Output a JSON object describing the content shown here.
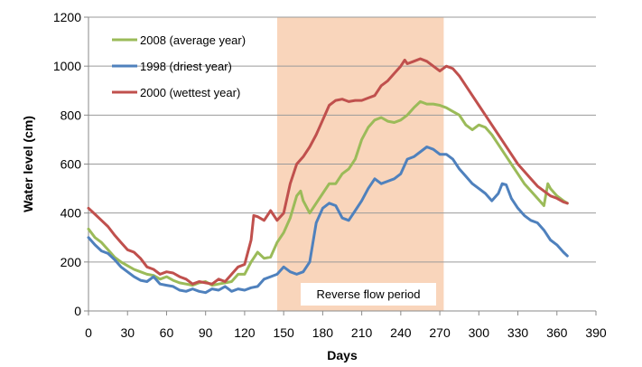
{
  "chart_data": {
    "type": "line",
    "title": "",
    "xlabel": "Days",
    "ylabel": "Water level (cm)",
    "xlim": [
      0,
      390
    ],
    "ylim": [
      0,
      1200
    ],
    "xticks": [
      0,
      30,
      60,
      90,
      120,
      150,
      180,
      210,
      240,
      270,
      300,
      330,
      360,
      390
    ],
    "yticks": [
      0,
      200,
      400,
      600,
      800,
      1000,
      1200
    ],
    "grid": "horizontal",
    "legend_position": "top-left",
    "shaded_region": {
      "x_start": 145,
      "x_end": 273,
      "color": "#f9d5bb",
      "label": "Reverse flow period"
    },
    "series": [
      {
        "name": "2008 (average year)",
        "color": "#9bbb59",
        "x": [
          0,
          5,
          10,
          15,
          20,
          25,
          30,
          35,
          40,
          45,
          50,
          55,
          60,
          65,
          70,
          75,
          80,
          85,
          90,
          95,
          100,
          105,
          110,
          115,
          120,
          125,
          130,
          135,
          140,
          145,
          150,
          155,
          160,
          163,
          165,
          170,
          175,
          180,
          185,
          190,
          195,
          200,
          205,
          210,
          215,
          220,
          225,
          230,
          235,
          240,
          245,
          250,
          255,
          260,
          265,
          270,
          275,
          280,
          285,
          290,
          295,
          300,
          305,
          310,
          315,
          320,
          325,
          330,
          335,
          340,
          345,
          350,
          353,
          355,
          360,
          365,
          368
        ],
        "values": [
          335,
          300,
          280,
          250,
          220,
          200,
          185,
          170,
          160,
          150,
          145,
          130,
          140,
          125,
          115,
          110,
          105,
          115,
          120,
          105,
          110,
          115,
          120,
          150,
          150,
          200,
          240,
          215,
          220,
          280,
          320,
          380,
          470,
          490,
          450,
          400,
          440,
          480,
          520,
          520,
          560,
          580,
          620,
          700,
          750,
          780,
          790,
          775,
          770,
          780,
          800,
          830,
          855,
          845,
          845,
          840,
          830,
          815,
          800,
          760,
          740,
          760,
          750,
          720,
          680,
          640,
          600,
          560,
          520,
          490,
          460,
          430,
          520,
          500,
          470,
          450,
          440
        ]
      },
      {
        "name": "1998 (driest year)",
        "color": "#4f81bd",
        "x": [
          0,
          5,
          10,
          15,
          20,
          25,
          30,
          35,
          40,
          45,
          50,
          55,
          60,
          65,
          70,
          75,
          80,
          85,
          90,
          95,
          100,
          105,
          110,
          115,
          120,
          125,
          130,
          135,
          140,
          145,
          150,
          155,
          160,
          165,
          170,
          175,
          180,
          185,
          190,
          195,
          200,
          205,
          210,
          215,
          220,
          225,
          230,
          235,
          240,
          245,
          250,
          255,
          260,
          265,
          270,
          275,
          280,
          285,
          290,
          295,
          300,
          305,
          310,
          315,
          318,
          321,
          325,
          330,
          335,
          340,
          345,
          350,
          355,
          360,
          365,
          368
        ],
        "values": [
          300,
          270,
          245,
          235,
          210,
          180,
          160,
          140,
          125,
          120,
          140,
          110,
          105,
          100,
          85,
          80,
          90,
          80,
          75,
          90,
          85,
          100,
          80,
          90,
          85,
          95,
          100,
          130,
          140,
          150,
          180,
          160,
          150,
          160,
          200,
          360,
          420,
          440,
          430,
          380,
          370,
          410,
          450,
          500,
          540,
          520,
          530,
          540,
          560,
          620,
          630,
          650,
          670,
          660,
          640,
          640,
          620,
          580,
          550,
          520,
          500,
          480,
          450,
          480,
          520,
          515,
          460,
          420,
          390,
          370,
          360,
          330,
          290,
          270,
          240,
          225
        ]
      },
      {
        "name": "2000 (wettest year)",
        "color": "#c0504d",
        "x": [
          0,
          5,
          10,
          15,
          20,
          25,
          30,
          35,
          40,
          45,
          50,
          55,
          60,
          65,
          70,
          75,
          80,
          85,
          90,
          95,
          100,
          105,
          110,
          115,
          120,
          125,
          127,
          130,
          135,
          140,
          145,
          150,
          155,
          160,
          165,
          170,
          175,
          180,
          185,
          190,
          195,
          200,
          205,
          210,
          215,
          220,
          225,
          230,
          235,
          240,
          243,
          245,
          250,
          255,
          260,
          265,
          270,
          275,
          280,
          285,
          290,
          295,
          300,
          305,
          310,
          315,
          320,
          325,
          330,
          335,
          340,
          345,
          350,
          355,
          360,
          365,
          368
        ],
        "values": [
          420,
          395,
          370,
          345,
          310,
          280,
          250,
          240,
          215,
          180,
          170,
          150,
          160,
          155,
          140,
          130,
          110,
          120,
          115,
          110,
          130,
          120,
          150,
          180,
          190,
          290,
          390,
          385,
          370,
          410,
          370,
          400,
          520,
          600,
          630,
          670,
          720,
          780,
          840,
          860,
          865,
          855,
          860,
          860,
          870,
          880,
          920,
          940,
          970,
          1000,
          1025,
          1010,
          1020,
          1030,
          1020,
          1000,
          980,
          1000,
          990,
          960,
          920,
          880,
          840,
          800,
          760,
          720,
          680,
          640,
          600,
          570,
          540,
          510,
          490,
          470,
          460,
          445,
          440
        ]
      }
    ]
  }
}
